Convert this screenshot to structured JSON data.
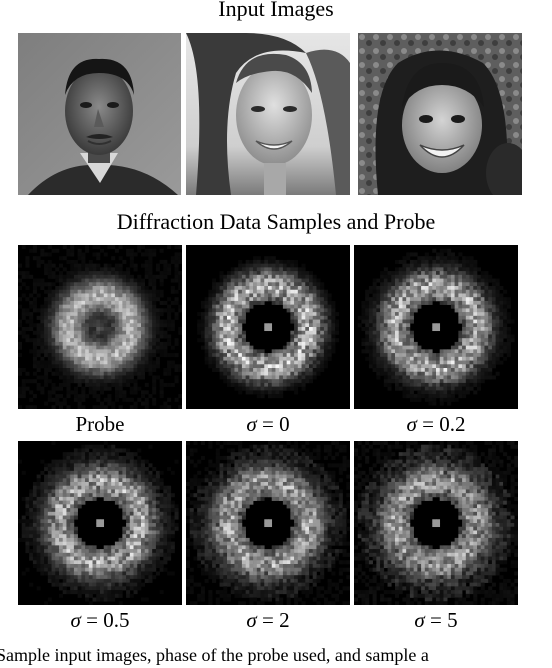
{
  "section_input": {
    "title": "Input Images"
  },
  "section_diffraction": {
    "title": "Diffraction Data Samples and Probe"
  },
  "input_images": [
    {
      "alt": "portrait-man"
    },
    {
      "alt": "portrait-woman"
    },
    {
      "alt": "portrait-girl"
    }
  ],
  "diffraction_panels": [
    {
      "symbol": "",
      "eq": "",
      "label": "Probe",
      "kind": "probe"
    },
    {
      "symbol": "σ",
      "eq": " = ",
      "label": "0",
      "kind": "ring"
    },
    {
      "symbol": "σ",
      "eq": " = ",
      "label": "0.2",
      "kind": "ring"
    },
    {
      "symbol": "σ",
      "eq": " = ",
      "label": "0.5",
      "kind": "ring"
    },
    {
      "symbol": "σ",
      "eq": " = ",
      "label": "2",
      "kind": "ring"
    },
    {
      "symbol": "σ",
      "eq": " = ",
      "label": "5",
      "kind": "ring"
    }
  ],
  "caption": {
    "text": "Sample input images, phase of the probe used, and sample a"
  }
}
